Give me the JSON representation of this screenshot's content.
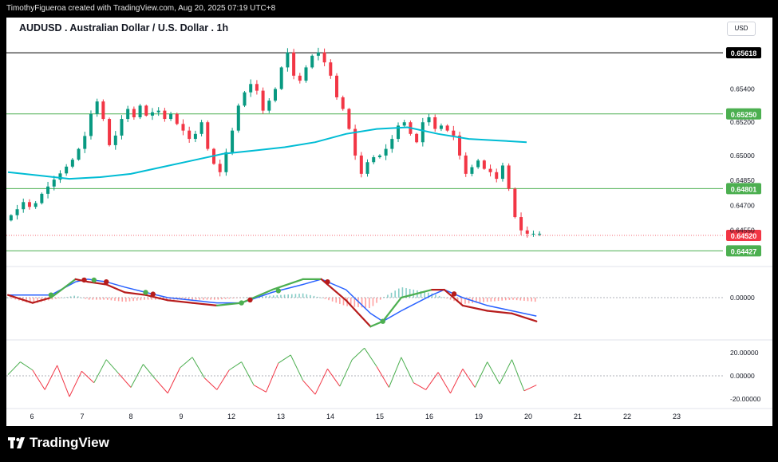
{
  "header": {
    "caption": "TimothyFigueroa created with TradingView.com, Aug 20, 2025 07:19 UTC+8",
    "title": "AUDUSD . Australian Dollar / U.S. Dollar . 1h",
    "currency": "USD"
  },
  "footer": {
    "brand": "TradingView"
  },
  "chart_data": [
    {
      "type": "candlestick",
      "title": "AUDUSD . Australian Dollar / U.S. Dollar . 1h",
      "timeframe": "1h",
      "ylim": [
        0.644,
        0.657
      ],
      "y_tick_labels": [
        "0.65400",
        "0.65200",
        "0.65000",
        "0.64850",
        "0.64700",
        "0.64550"
      ],
      "x_tick_labels": [
        "6",
        "7",
        "8",
        "9",
        "12",
        "13",
        "14",
        "15",
        "16",
        "19",
        "20",
        "21",
        "22",
        "23"
      ],
      "horizontal_levels": [
        {
          "label": "0.65618",
          "value": 0.65618,
          "color": "#000000"
        },
        {
          "label": "0.65250",
          "value": 0.6525,
          "color": "#4caf50"
        },
        {
          "label": "0.64801",
          "value": 0.64801,
          "color": "#4caf50"
        },
        {
          "label": "0.64427",
          "value": 0.64427,
          "color": "#4caf50"
        }
      ],
      "last_price": {
        "label": "0.64520",
        "value": 0.6452,
        "color": "#f23645"
      },
      "moving_average": {
        "color": "#00bcd4",
        "points": [
          [
            0,
            0.649
          ],
          [
            25,
            0.6488
          ],
          [
            50,
            0.6486
          ],
          [
            75,
            0.6487
          ],
          [
            100,
            0.6489
          ],
          [
            125,
            0.6493
          ],
          [
            150,
            0.6497
          ],
          [
            175,
            0.6501
          ],
          [
            200,
            0.6503
          ],
          [
            225,
            0.6505
          ],
          [
            250,
            0.6508
          ],
          [
            275,
            0.6513
          ],
          [
            300,
            0.6516
          ],
          [
            325,
            0.6517
          ],
          [
            350,
            0.6513
          ],
          [
            375,
            0.651
          ],
          [
            400,
            0.6509
          ],
          [
            422,
            0.6508
          ]
        ]
      },
      "close_path": [
        [
          0,
          0.6461
        ],
        [
          8,
          0.6466
        ],
        [
          15,
          0.6472
        ],
        [
          22,
          0.6468
        ],
        [
          30,
          0.6477
        ],
        [
          38,
          0.6484
        ],
        [
          46,
          0.649
        ],
        [
          52,
          0.6495
        ],
        [
          58,
          0.65
        ],
        [
          62,
          0.6508
        ],
        [
          66,
          0.6513
        ],
        [
          70,
          0.6525
        ],
        [
          74,
          0.6534
        ],
        [
          78,
          0.6528
        ],
        [
          82,
          0.6516
        ],
        [
          86,
          0.6503
        ],
        [
          90,
          0.6512
        ],
        [
          95,
          0.6522
        ],
        [
          100,
          0.6528
        ],
        [
          105,
          0.6523
        ],
        [
          110,
          0.653
        ],
        [
          115,
          0.6524
        ],
        [
          120,
          0.6526
        ],
        [
          125,
          0.6527
        ],
        [
          130,
          0.6522
        ],
        [
          135,
          0.6525
        ],
        [
          140,
          0.6519
        ],
        [
          145,
          0.6515
        ],
        [
          150,
          0.651
        ],
        [
          155,
          0.6513
        ],
        [
          160,
          0.652
        ],
        [
          165,
          0.6504
        ],
        [
          170,
          0.6495
        ],
        [
          175,
          0.649
        ],
        [
          180,
          0.6502
        ],
        [
          185,
          0.6515
        ],
        [
          190,
          0.653
        ],
        [
          195,
          0.6538
        ],
        [
          200,
          0.6543
        ],
        [
          205,
          0.6539
        ],
        [
          210,
          0.6527
        ],
        [
          215,
          0.6533
        ],
        [
          220,
          0.654
        ],
        [
          225,
          0.6553
        ],
        [
          230,
          0.6562
        ],
        [
          235,
          0.6548
        ],
        [
          240,
          0.6545
        ],
        [
          245,
          0.6553
        ],
        [
          250,
          0.656
        ],
        [
          255,
          0.6562
        ],
        [
          260,
          0.6556
        ],
        [
          265,
          0.6548
        ],
        [
          270,
          0.6535
        ],
        [
          275,
          0.6528
        ],
        [
          280,
          0.6516
        ],
        [
          285,
          0.65
        ],
        [
          290,
          0.6489
        ],
        [
          295,
          0.6496
        ],
        [
          300,
          0.6499
        ],
        [
          305,
          0.65
        ],
        [
          310,
          0.6504
        ],
        [
          315,
          0.651
        ],
        [
          320,
          0.6518
        ],
        [
          325,
          0.652
        ],
        [
          330,
          0.6513
        ],
        [
          335,
          0.6508
        ],
        [
          340,
          0.652
        ],
        [
          345,
          0.6523
        ],
        [
          350,
          0.6516
        ],
        [
          355,
          0.6518
        ],
        [
          360,
          0.6515
        ],
        [
          365,
          0.6512
        ],
        [
          370,
          0.65
        ],
        [
          375,
          0.6489
        ],
        [
          380,
          0.6493
        ],
        [
          385,
          0.6497
        ],
        [
          390,
          0.6492
        ],
        [
          395,
          0.649
        ],
        [
          400,
          0.6486
        ],
        [
          405,
          0.6494
        ],
        [
          410,
          0.648
        ],
        [
          415,
          0.6463
        ],
        [
          420,
          0.6455
        ],
        [
          425,
          0.6453
        ],
        [
          430,
          0.6453
        ],
        [
          435,
          0.6453
        ]
      ]
    },
    {
      "type": "line",
      "title": "",
      "ylim": [
        -0.0012,
        0.0012
      ],
      "y_tick_labels": [
        "0.00000"
      ],
      "series": [
        {
          "color": "#4caf50/#b71c1c",
          "values": [
            [
              0,
              0.0001
            ],
            [
              20,
              -0.0002
            ],
            [
              35,
              0.0
            ],
            [
              55,
              0.0007
            ],
            [
              65,
              0.0006
            ],
            [
              80,
              0.0005
            ],
            [
              95,
              0.0002
            ],
            [
              112,
              0.0001
            ],
            [
              130,
              -0.0001
            ],
            [
              150,
              -0.0002
            ],
            [
              170,
              -0.0003
            ],
            [
              190,
              -0.0002
            ],
            [
              215,
              0.0003
            ],
            [
              240,
              0.0007
            ],
            [
              255,
              0.0007
            ],
            [
              275,
              -0.0001
            ],
            [
              295,
              -0.0011
            ],
            [
              305,
              -0.0009
            ],
            [
              320,
              0.0
            ],
            [
              345,
              0.0003
            ],
            [
              355,
              0.0003
            ],
            [
              370,
              -0.0003
            ],
            [
              390,
              -0.0005
            ],
            [
              410,
              -0.0006
            ],
            [
              430,
              -0.0009
            ]
          ]
        },
        {
          "color": "#2962ff",
          "values": [
            [
              0,
              0.0001
            ],
            [
              20,
              0.0001
            ],
            [
              35,
              0.0001
            ],
            [
              55,
              0.0006
            ],
            [
              65,
              0.0007
            ],
            [
              80,
              0.0006
            ],
            [
              95,
              0.0004
            ],
            [
              112,
              0.0002
            ],
            [
              130,
              0.0
            ],
            [
              150,
              -0.0001
            ],
            [
              170,
              -0.0002
            ],
            [
              190,
              -0.0002
            ],
            [
              215,
              0.0002
            ],
            [
              240,
              0.0005
            ],
            [
              255,
              0.0007
            ],
            [
              275,
              0.0003
            ],
            [
              295,
              -0.0006
            ],
            [
              305,
              -0.0009
            ],
            [
              320,
              -0.0005
            ],
            [
              345,
              0.0001
            ],
            [
              355,
              0.0003
            ],
            [
              370,
              0.0
            ],
            [
              390,
              -0.0003
            ],
            [
              410,
              -0.0005
            ],
            [
              430,
              -0.0007
            ]
          ]
        }
      ]
    },
    {
      "type": "line",
      "title": "",
      "ylim": [
        -25,
        25
      ],
      "y_tick_labels": [
        "20.00000",
        "0.00000",
        "-20.00000"
      ],
      "series": [
        {
          "color": "#4caf50/#f23645",
          "values": [
            [
              0,
              1
            ],
            [
              10,
              12
            ],
            [
              20,
              5
            ],
            [
              30,
              -12
            ],
            [
              40,
              9
            ],
            [
              50,
              -18
            ],
            [
              60,
              4
            ],
            [
              70,
              -6
            ],
            [
              80,
              14
            ],
            [
              90,
              2
            ],
            [
              100,
              -10
            ],
            [
              110,
              10
            ],
            [
              120,
              -3
            ],
            [
              130,
              -15
            ],
            [
              140,
              7
            ],
            [
              150,
              16
            ],
            [
              160,
              -2
            ],
            [
              170,
              -12
            ],
            [
              180,
              5
            ],
            [
              190,
              12
            ],
            [
              200,
              -8
            ],
            [
              210,
              -14
            ],
            [
              220,
              11
            ],
            [
              230,
              18
            ],
            [
              240,
              -4
            ],
            [
              250,
              -16
            ],
            [
              260,
              6
            ],
            [
              270,
              -9
            ],
            [
              280,
              14
            ],
            [
              290,
              24
            ],
            [
              300,
              8
            ],
            [
              310,
              -10
            ],
            [
              320,
              16
            ],
            [
              330,
              -6
            ],
            [
              340,
              -12
            ],
            [
              350,
              3
            ],
            [
              360,
              -15
            ],
            [
              370,
              6
            ],
            [
              380,
              -10
            ],
            [
              390,
              12
            ],
            [
              400,
              -7
            ],
            [
              410,
              14
            ],
            [
              420,
              -13
            ],
            [
              430,
              -8
            ]
          ]
        }
      ]
    }
  ]
}
